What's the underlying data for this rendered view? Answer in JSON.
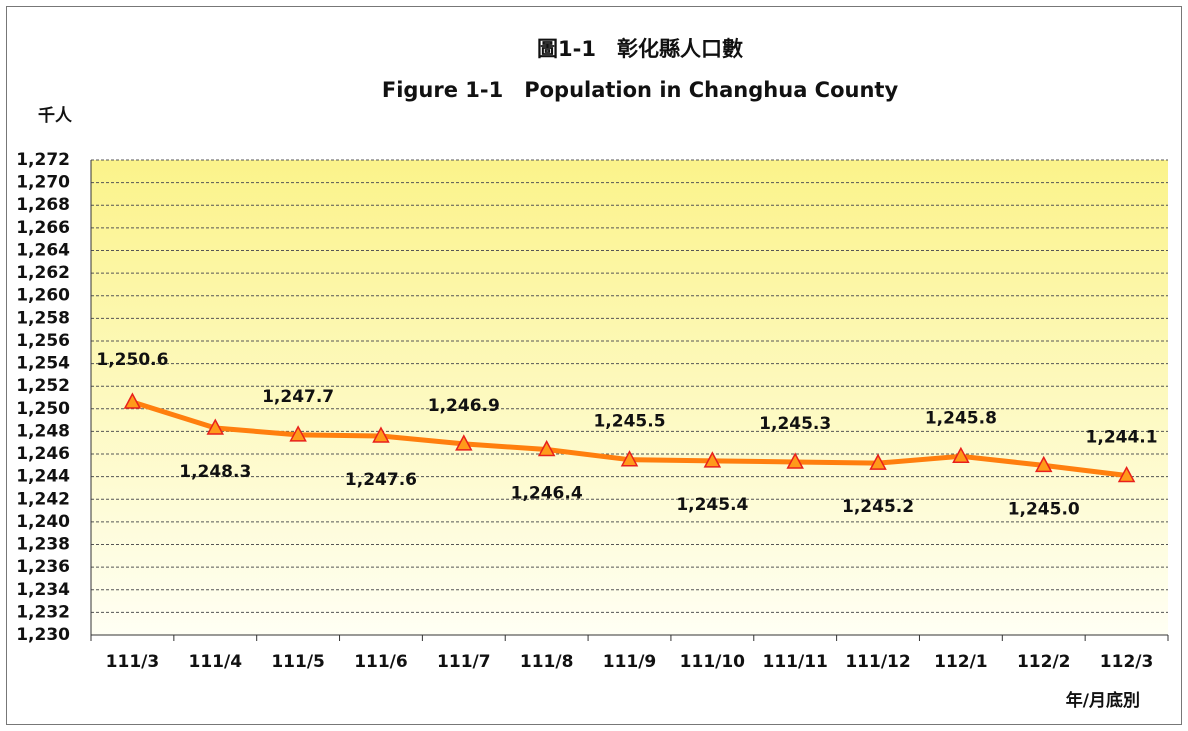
{
  "chart_data": {
    "type": "line",
    "title": "圖1-1　彰化縣人口數",
    "subtitle": "Figure 1-1　Population in Changhua County",
    "y_label": "千人",
    "x_label": "年/月底別",
    "categories": [
      "111/3",
      "111/4",
      "111/5",
      "111/6",
      "111/7",
      "111/8",
      "111/9",
      "111/10",
      "111/11",
      "111/12",
      "112/1",
      "112/2",
      "112/3"
    ],
    "values": [
      1250.6,
      1248.3,
      1247.7,
      1247.6,
      1246.9,
      1246.4,
      1245.5,
      1245.4,
      1245.3,
      1245.2,
      1245.8,
      1245.0,
      1244.1
    ],
    "value_labels": [
      "1,250.6",
      "1,248.3",
      "1,247.7",
      "1,247.6",
      "1,246.9",
      "1,246.4",
      "1,245.5",
      "1,245.4",
      "1,245.3",
      "1,245.2",
      "1,245.8",
      "1,245.0",
      "1,244.1"
    ],
    "color": "#ff7f0e",
    "marker_color": "#ff9a1a",
    "marker_edge": "#e8201c",
    "ylim": [
      1230,
      1272
    ],
    "yticks": [
      {
        "value": 1230,
        "label": "1,230"
      },
      {
        "value": 1232,
        "label": "1,232"
      },
      {
        "value": 1234,
        "label": "1,234"
      },
      {
        "value": 1236,
        "label": "1,236"
      },
      {
        "value": 1238,
        "label": "1,238"
      },
      {
        "value": 1240,
        "label": "1,240"
      },
      {
        "value": 1242,
        "label": "1,242"
      },
      {
        "value": 1244,
        "label": "1,244"
      },
      {
        "value": 1246,
        "label": "1,246"
      },
      {
        "value": 1248,
        "label": "1,248"
      },
      {
        "value": 1250,
        "label": "1,250"
      },
      {
        "value": 1252,
        "label": "1,252"
      },
      {
        "value": 1254,
        "label": "1,254"
      },
      {
        "value": 1256,
        "label": "1,256"
      },
      {
        "value": 1258,
        "label": "1,258"
      },
      {
        "value": 1260,
        "label": "1,260"
      },
      {
        "value": 1262,
        "label": "1,262"
      },
      {
        "value": 1264,
        "label": "1,264"
      },
      {
        "value": 1266,
        "label": "1,266"
      },
      {
        "value": 1268,
        "label": "1,268"
      },
      {
        "value": 1270,
        "label": "1,270"
      },
      {
        "value": 1272,
        "label": "1,272"
      }
    ],
    "grid": true
  }
}
